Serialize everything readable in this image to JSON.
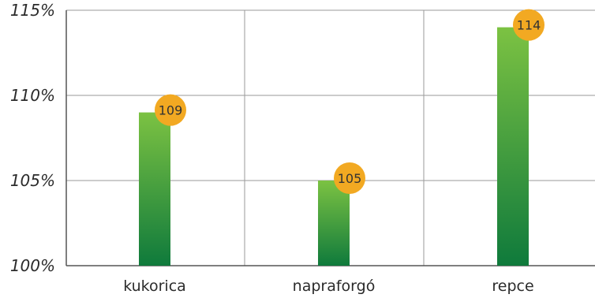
{
  "chart_data": {
    "type": "bar",
    "categories": [
      "kukorica",
      "napraforgó",
      "repce"
    ],
    "values": [
      109,
      105,
      114
    ],
    "data_labels": [
      "109",
      "105",
      "114"
    ],
    "y_ticks": [
      100,
      105,
      110,
      115
    ],
    "y_tick_labels": [
      "100%",
      "105%",
      "110%",
      "115%"
    ],
    "ylim": [
      100,
      115
    ],
    "grid": true,
    "colors": {
      "bar_top": "#7cc242",
      "bar_bottom": "#0f7a3c",
      "label_bubble": "#f2a922",
      "grid": "#9a9a9a",
      "axis": "#555555"
    }
  }
}
